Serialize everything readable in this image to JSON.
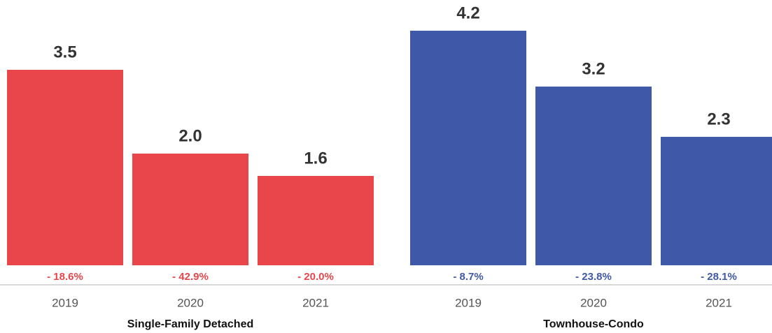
{
  "chart_data": [
    {
      "type": "bar",
      "title": "Single-Family Detached",
      "color": "#e8464b",
      "categories": [
        "2019",
        "2020",
        "2021"
      ],
      "values": [
        3.5,
        2.0,
        1.6
      ],
      "value_labels": [
        "3.5",
        "2.0",
        "1.6"
      ],
      "change_labels": [
        "- 18.6%",
        "- 42.9%",
        "- 20.0%"
      ],
      "ylim": [
        0,
        4.75
      ]
    },
    {
      "type": "bar",
      "title": "Townhouse-Condo",
      "color": "#3f58a8",
      "categories": [
        "2019",
        "2020",
        "2021"
      ],
      "values": [
        4.2,
        3.2,
        2.3
      ],
      "value_labels": [
        "4.2",
        "3.2",
        "2.3"
      ],
      "change_labels": [
        "- 8.7%",
        "- 23.8%",
        "- 28.1%"
      ],
      "ylim": [
        0,
        4.75
      ]
    }
  ]
}
